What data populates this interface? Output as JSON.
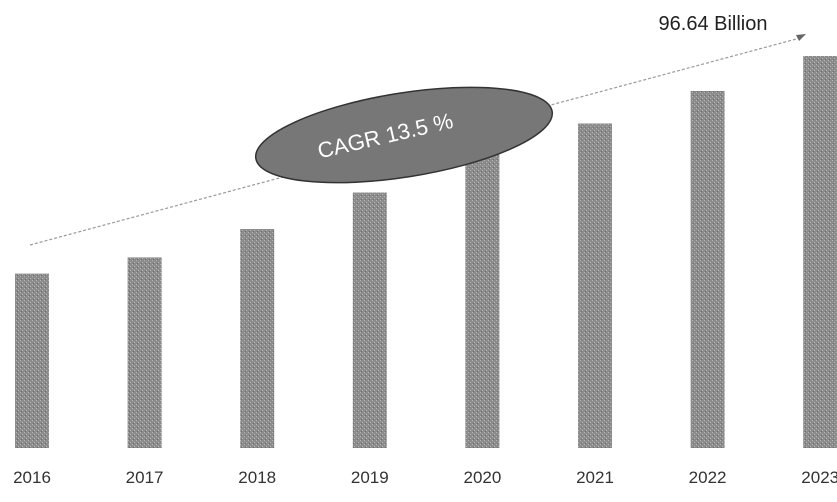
{
  "chart_data": {
    "type": "bar",
    "categories": [
      "2016",
      "2017",
      "2018",
      "2019",
      "2020",
      "2021",
      "2022",
      "2023"
    ],
    "values": [
      43,
      47,
      54,
      63,
      73,
      80,
      88,
      96.64
    ],
    "title": "",
    "xlabel": "",
    "ylabel": "",
    "ylim": [
      0,
      100
    ],
    "grid": false,
    "legend": "none",
    "bar_color": "#8c8c8c",
    "annotations": {
      "end_value_label": "96.64 Billion",
      "cagr_label": "CAGR 13.5 %"
    },
    "colors": {
      "bar": "#8c8c8c",
      "bar_texture": "#b4b4b4",
      "ellipse_fill": "#777777",
      "ellipse_stroke": "#333333",
      "trend_line": "#999999",
      "text": "#222222",
      "cagr_text": "#ffffff",
      "tick_text": "#333333"
    }
  }
}
